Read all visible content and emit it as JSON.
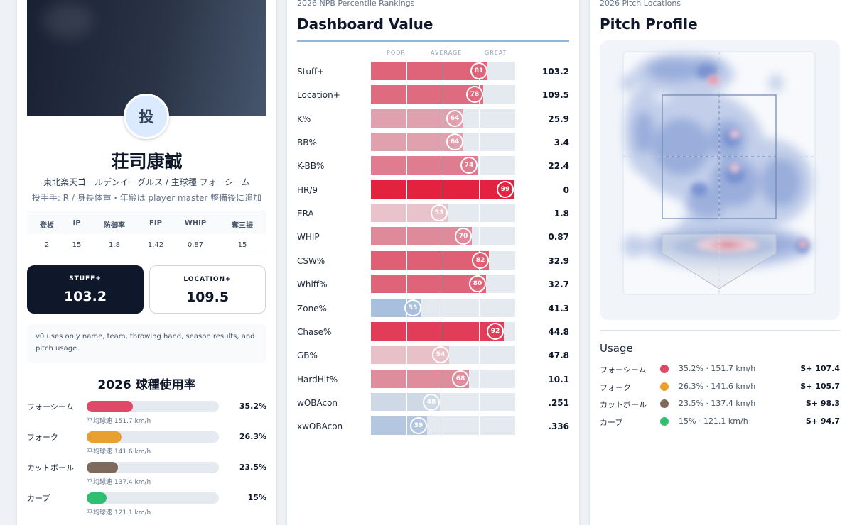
{
  "player": {
    "avatar_char": "投",
    "name": "荘司康誠",
    "team_line": "東北楽天ゴールデンイーグルス / 主球種 フォーシーム",
    "meta_line": "投手手: R / 身長体重・年齢は player master 整備後に追加"
  },
  "stats": {
    "headers": [
      "登板",
      "IP",
      "防御率",
      "FIP",
      "WHIP",
      "奪三振"
    ],
    "values": [
      "2",
      "15",
      "1.8",
      "1.42",
      "0.87",
      "15"
    ]
  },
  "score_boxes": {
    "stuff_label": "STUFF+",
    "stuff_value": "103.2",
    "location_label": "LOCATION+",
    "location_value": "109.5"
  },
  "note": "v0 uses only name, team, throwing hand, season results, and pitch usage.",
  "usage_section": {
    "title": "2026 球種使用率",
    "speed_prefix": "平均球速",
    "pitches": [
      {
        "name": "フォーシーム",
        "pct": "35.2%",
        "fraction": 0.352,
        "speed": "平均球速 151.7 km/h",
        "color": "#e0486a"
      },
      {
        "name": "フォーク",
        "pct": "26.3%",
        "fraction": 0.263,
        "speed": "平均球速 141.6 km/h",
        "color": "#e8a030"
      },
      {
        "name": "カットボール",
        "pct": "23.5%",
        "fraction": 0.235,
        "speed": "平均球速 137.4 km/h",
        "color": "#7d6a5c"
      },
      {
        "name": "カーブ",
        "pct": "15%",
        "fraction": 0.15,
        "speed": "平均球速 121.1 km/h",
        "color": "#2fbf71"
      }
    ]
  },
  "rankings": {
    "context": "2026 NPB Percentile Rankings",
    "title": "Dashboard Value",
    "axis": {
      "poor": "POOR",
      "average": "AVERAGE",
      "great": "GREAT"
    },
    "metrics": [
      {
        "label": "Stuff+",
        "percentile": "81",
        "value": "103.2",
        "color": "#df6479"
      },
      {
        "label": "Location+",
        "percentile": "78",
        "value": "109.5",
        "color": "#df6b80"
      },
      {
        "label": "K%",
        "percentile": "64",
        "value": "25.9",
        "color": "#e0a0ad"
      },
      {
        "label": "BB%",
        "percentile": "64",
        "value": "3.4",
        "color": "#e0a0ad"
      },
      {
        "label": "K-BB%",
        "percentile": "74",
        "value": "22.4",
        "color": "#df7c8f"
      },
      {
        "label": "HR/9",
        "percentile": "99",
        "value": "0",
        "color": "#e3223f"
      },
      {
        "label": "ERA",
        "percentile": "53",
        "value": "1.8",
        "color": "#e8c3cb"
      },
      {
        "label": "WHIP",
        "percentile": "70",
        "value": "0.87",
        "color": "#df8a9a"
      },
      {
        "label": "CSW%",
        "percentile": "82",
        "value": "32.9",
        "color": "#df6075"
      },
      {
        "label": "Whiff%",
        "percentile": "80",
        "value": "32.7",
        "color": "#df6479"
      },
      {
        "label": "Zone%",
        "percentile": "35",
        "value": "41.3",
        "color": "#a9bfde"
      },
      {
        "label": "Chase%",
        "percentile": "92",
        "value": "44.8",
        "color": "#e23d58"
      },
      {
        "label": "GB%",
        "percentile": "54",
        "value": "47.8",
        "color": "#e8c0c8"
      },
      {
        "label": "HardHit%",
        "percentile": "68",
        "value": "10.1",
        "color": "#df8c9c"
      },
      {
        "label": "wOBAcon",
        "percentile": "48",
        "value": ".251",
        "color": "#cfd9e6"
      },
      {
        "label": "xwOBAcon",
        "percentile": "39",
        "value": ".336",
        "color": "#b5c7e0"
      }
    ]
  },
  "pitch_profile": {
    "context": "2026 Pitch Locations",
    "title": "Pitch Profile",
    "usage_title": "Usage",
    "pitches": [
      {
        "name": "フォーシーム",
        "info": "35.2% · 151.7 km/h",
        "score": "S+ 107.4",
        "color": "#e0486a"
      },
      {
        "name": "フォーク",
        "info": "26.3% · 141.6 km/h",
        "score": "S+ 105.7",
        "color": "#e8a030"
      },
      {
        "name": "カットボール",
        "info": "23.5% · 137.4 km/h",
        "score": "S+ 98.3",
        "color": "#7d6a5c"
      },
      {
        "name": "カーブ",
        "info": "15% · 121.1 km/h",
        "score": "S+ 94.7",
        "color": "#2fbf71"
      }
    ]
  }
}
